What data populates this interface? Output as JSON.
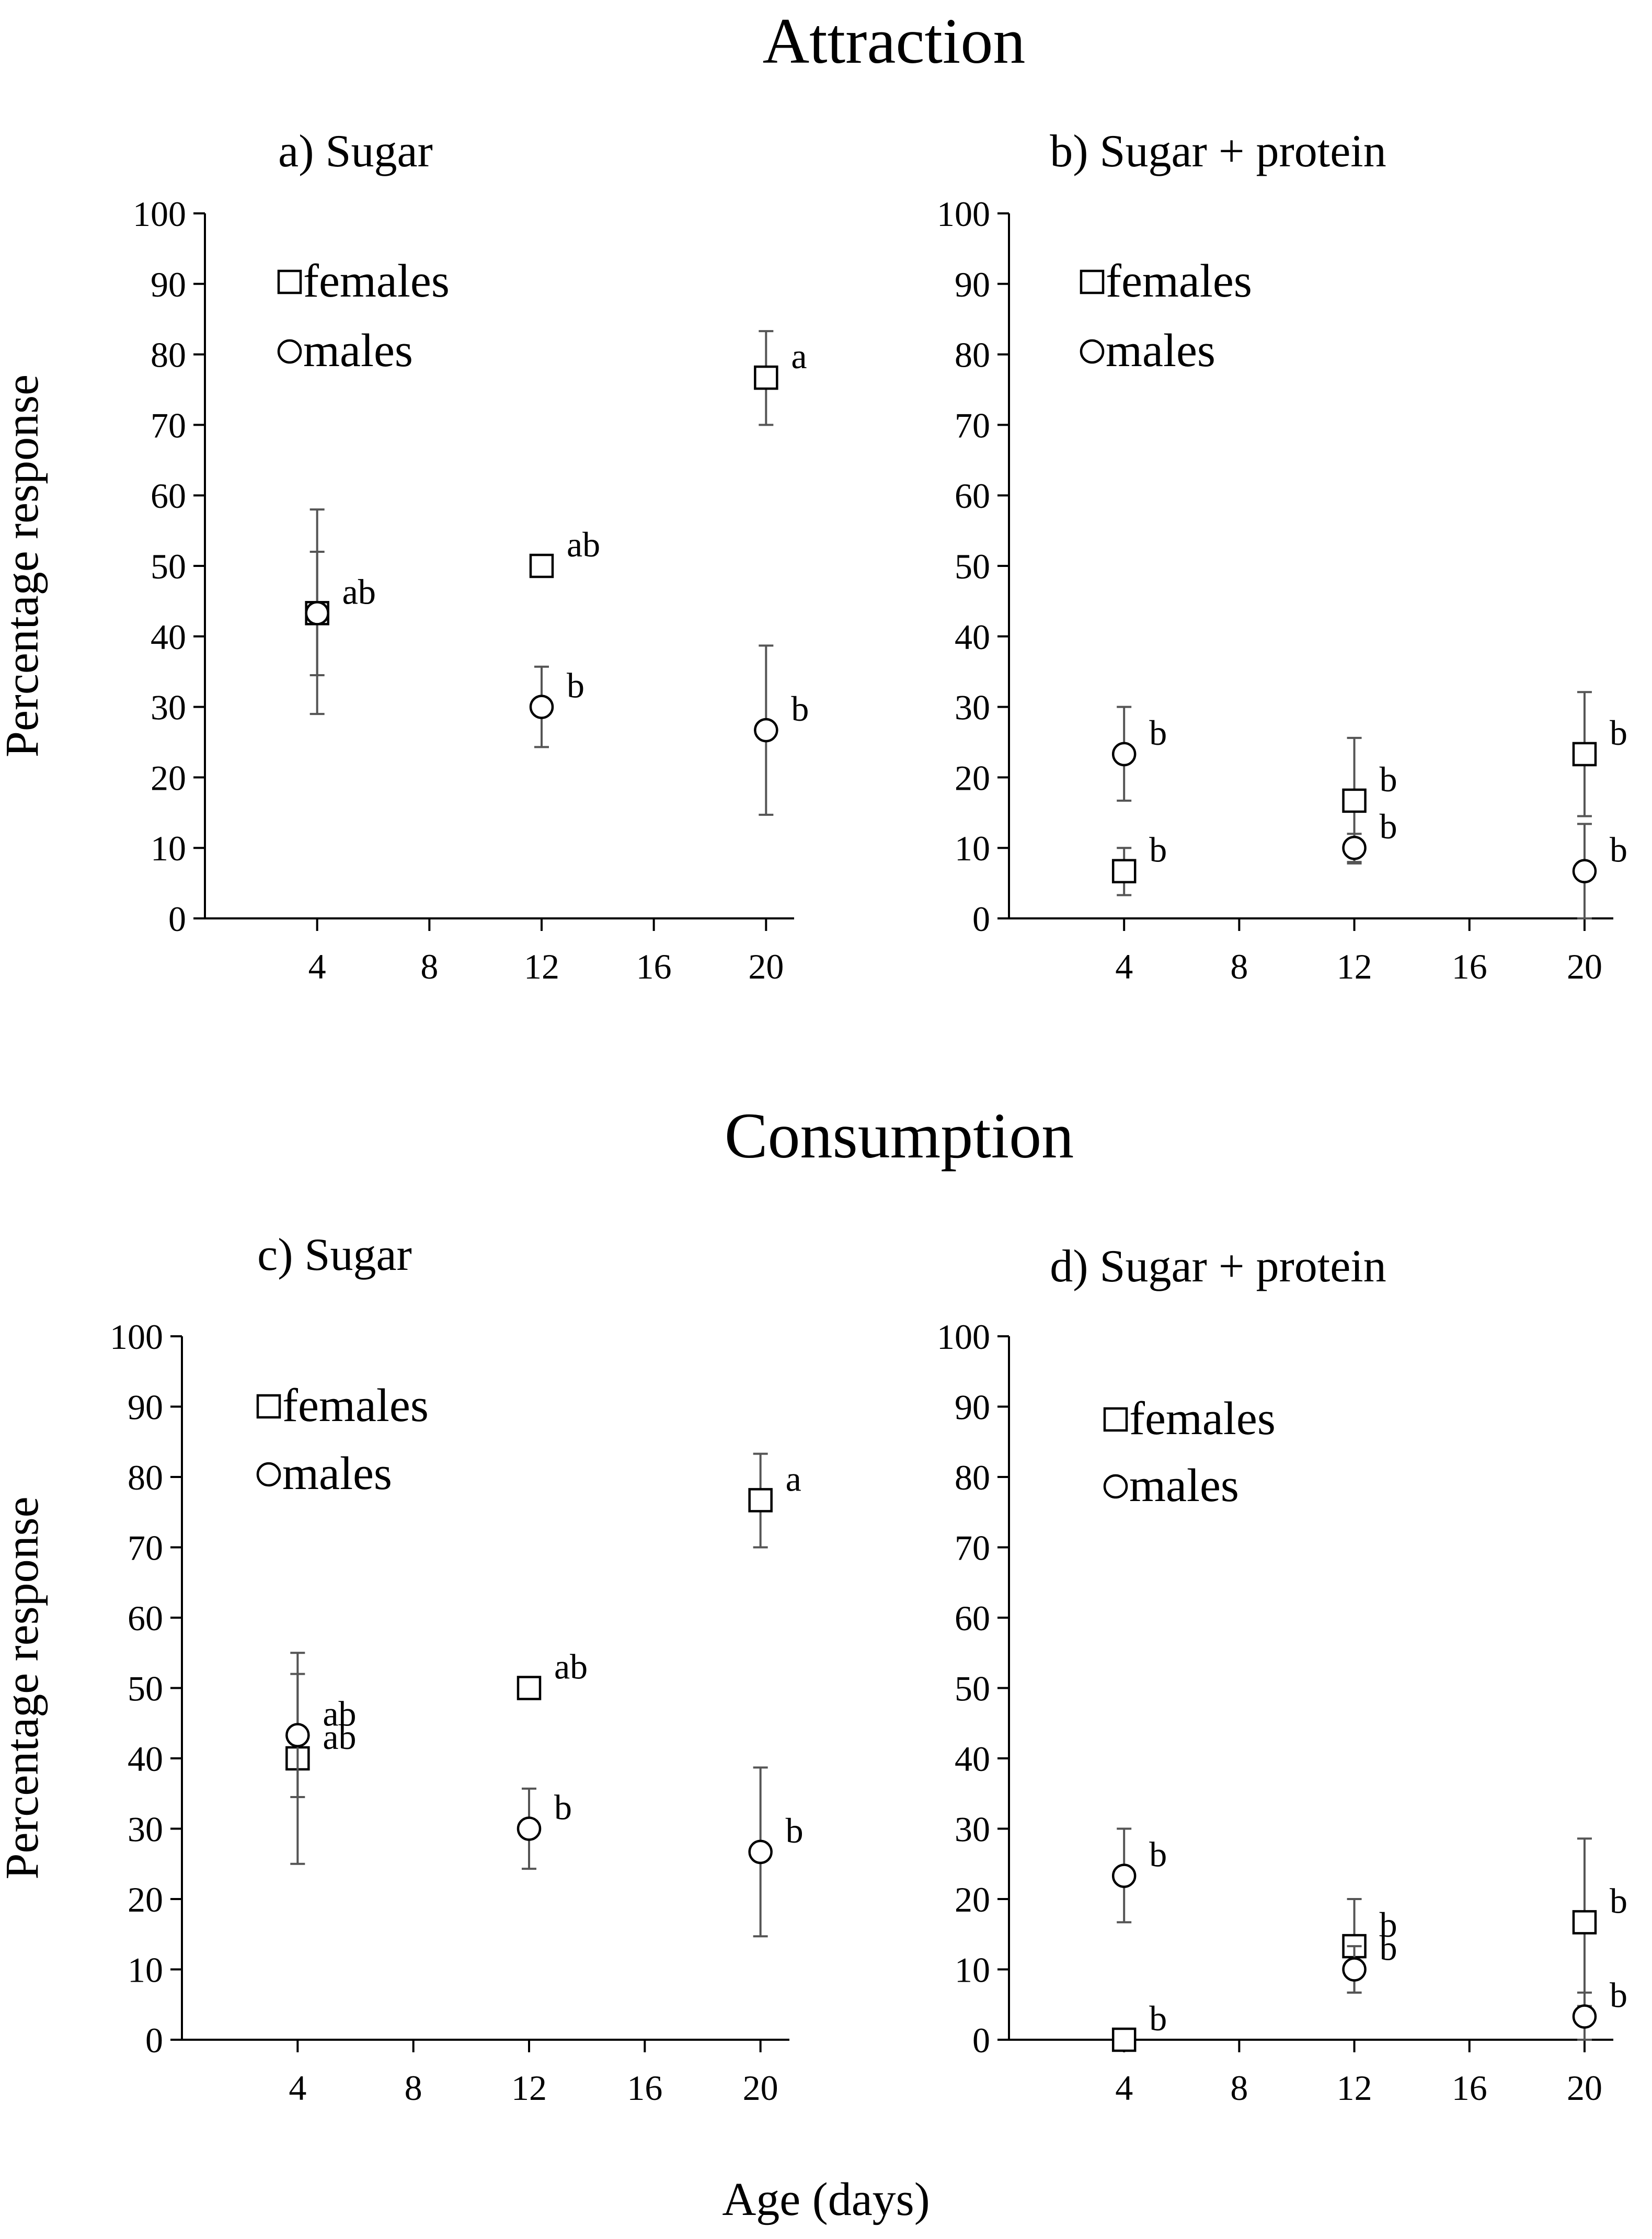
{
  "figure": {
    "section_titles": [
      "Attraction",
      "Consumption"
    ],
    "shared_xlabel": "Age (days)"
  },
  "chart_data": [
    {
      "type": "scatter",
      "title": "a) Sugar",
      "xlabel": "",
      "ylabel": "Percentage response",
      "xlim": [
        0,
        21
      ],
      "ylim": [
        0,
        100
      ],
      "xticks": [
        4,
        8,
        12,
        16,
        20
      ],
      "yticks": [
        0,
        10,
        20,
        30,
        40,
        50,
        60,
        70,
        80,
        90,
        100
      ],
      "legend": "top-left",
      "series": [
        {
          "name": "females",
          "marker": "square",
          "points": [
            {
              "x": 4,
              "y": 43.3,
              "err_low": 29,
              "err_high": 58,
              "label": "ab"
            },
            {
              "x": 12,
              "y": 50,
              "label": "ab"
            },
            {
              "x": 20,
              "y": 76.7,
              "err_low": 70,
              "err_high": 83.3,
              "label": "a"
            }
          ]
        },
        {
          "name": "males",
          "marker": "circle",
          "points": [
            {
              "x": 4,
              "y": 43.3,
              "err_low": 34.5,
              "err_high": 52,
              "label": "ab"
            },
            {
              "x": 12,
              "y": 30,
              "err_low": 24.3,
              "err_high": 35.7,
              "label": "b"
            },
            {
              "x": 20,
              "y": 26.7,
              "err_low": 14.7,
              "err_high": 38.7,
              "label": "b"
            }
          ]
        }
      ]
    },
    {
      "type": "scatter",
      "title": "b) Sugar + protein",
      "xlabel": "",
      "ylabel": "",
      "xlim": [
        0,
        21
      ],
      "ylim": [
        0,
        100
      ],
      "xticks": [
        4,
        8,
        12,
        16,
        20
      ],
      "yticks": [
        0,
        10,
        20,
        30,
        40,
        50,
        60,
        70,
        80,
        90,
        100
      ],
      "legend": "top-left",
      "series": [
        {
          "name": "females",
          "marker": "square",
          "points": [
            {
              "x": 4,
              "y": 6.7,
              "err_low": 3.3,
              "err_high": 10,
              "label": "b"
            },
            {
              "x": 12,
              "y": 16.7,
              "err_low": 7.8,
              "err_high": 25.6,
              "label": "b"
            },
            {
              "x": 20,
              "y": 23.3,
              "err_low": 14.5,
              "err_high": 32.1,
              "label": "b"
            }
          ]
        },
        {
          "name": "males",
          "marker": "circle",
          "points": [
            {
              "x": 4,
              "y": 23.3,
              "err_low": 16.7,
              "err_high": 30,
              "label": "b"
            },
            {
              "x": 12,
              "y": 10,
              "err_low": 8,
              "err_high": 12,
              "label": "b"
            },
            {
              "x": 20,
              "y": 6.7,
              "err_low": 0,
              "err_high": 13.4,
              "label": "b"
            }
          ]
        }
      ]
    },
    {
      "type": "scatter",
      "title": "c) Sugar",
      "xlabel": "",
      "ylabel": "Percentage response",
      "xlim": [
        0,
        21
      ],
      "ylim": [
        0,
        100
      ],
      "xticks": [
        4,
        8,
        12,
        16,
        20
      ],
      "yticks": [
        0,
        10,
        20,
        30,
        40,
        50,
        60,
        70,
        80,
        90,
        100
      ],
      "legend": "top-left",
      "series": [
        {
          "name": "females",
          "marker": "square",
          "points": [
            {
              "x": 4,
              "y": 40,
              "err_low": 25,
              "err_high": 55,
              "label": "ab"
            },
            {
              "x": 12,
              "y": 50,
              "label": "ab"
            },
            {
              "x": 20,
              "y": 76.7,
              "err_low": 70,
              "err_high": 83.3,
              "label": "a"
            }
          ]
        },
        {
          "name": "males",
          "marker": "circle",
          "points": [
            {
              "x": 4,
              "y": 43.3,
              "err_low": 34.5,
              "err_high": 52,
              "label": "ab"
            },
            {
              "x": 12,
              "y": 30,
              "err_low": 24.3,
              "err_high": 35.7,
              "label": "b"
            },
            {
              "x": 20,
              "y": 26.7,
              "err_low": 14.7,
              "err_high": 38.7,
              "label": "b"
            }
          ]
        }
      ]
    },
    {
      "type": "scatter",
      "title": "d) Sugar + protein",
      "xlabel": "",
      "ylabel": "",
      "xlim": [
        0,
        21
      ],
      "ylim": [
        0,
        100
      ],
      "xticks": [
        4,
        8,
        12,
        16,
        20
      ],
      "yticks": [
        0,
        10,
        20,
        30,
        40,
        50,
        60,
        70,
        80,
        90,
        100
      ],
      "legend": "top-left",
      "series": [
        {
          "name": "females",
          "marker": "square",
          "points": [
            {
              "x": 4,
              "y": 0,
              "label": "b"
            },
            {
              "x": 12,
              "y": 13.3,
              "err_low": 6.7,
              "err_high": 20,
              "label": "b"
            },
            {
              "x": 20,
              "y": 16.7,
              "err_low": 4.8,
              "err_high": 28.6,
              "label": "b"
            }
          ]
        },
        {
          "name": "males",
          "marker": "circle",
          "points": [
            {
              "x": 4,
              "y": 23.3,
              "err_low": 16.7,
              "err_high": 30,
              "label": "b"
            },
            {
              "x": 12,
              "y": 10,
              "err_low": 6.7,
              "err_high": 13.3,
              "label": "b"
            },
            {
              "x": 20,
              "y": 3.3,
              "err_low": 0,
              "err_high": 6.7,
              "label": "b"
            }
          ]
        }
      ]
    }
  ]
}
